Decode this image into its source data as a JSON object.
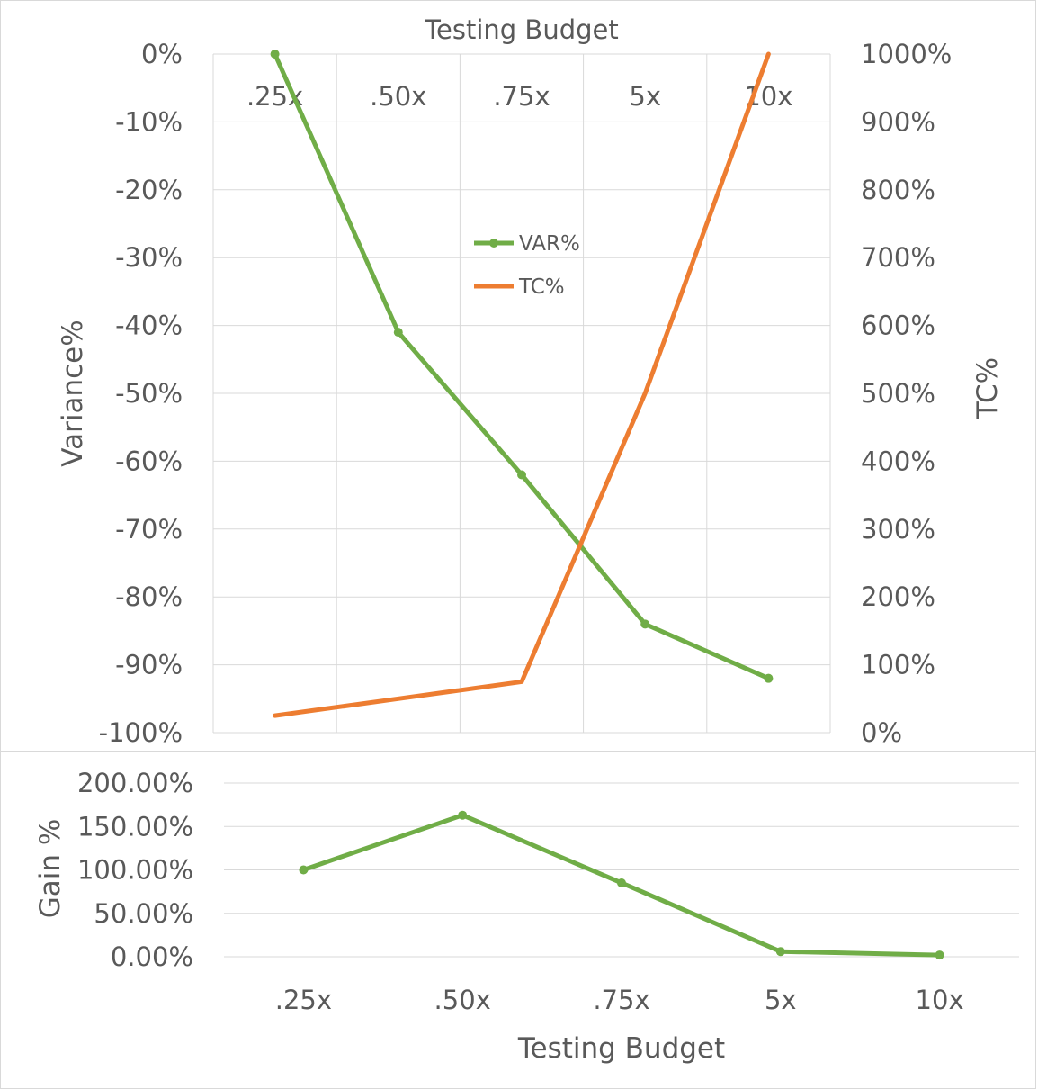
{
  "colors": {
    "var": "#70ad47",
    "tc": "#ed7d31",
    "grid": "#d9d9d9",
    "text": "#595959"
  },
  "chart_data": [
    {
      "type": "line",
      "title": "Testing Budget",
      "categories": [
        ".25x",
        ".50x",
        ".75x",
        "5x",
        "10x"
      ],
      "ylabel": "Variance%",
      "y2label": "TC%",
      "ylim": [
        -100,
        0
      ],
      "y2lim": [
        0,
        1000
      ],
      "yticks": [
        "0%",
        "-10%",
        "-20%",
        "-30%",
        "-40%",
        "-50%",
        "-60%",
        "-70%",
        "-80%",
        "-90%",
        "-100%"
      ],
      "y2ticks": [
        "1000%",
        "900%",
        "800%",
        "700%",
        "600%",
        "500%",
        "400%",
        "300%",
        "200%",
        "100%",
        "0%"
      ],
      "legend_position": "center",
      "grid": true,
      "series": [
        {
          "name": "VAR%",
          "axis": "left",
          "markers": true,
          "values": [
            0,
            -41,
            -62,
            -84,
            -92
          ]
        },
        {
          "name": "TC%",
          "axis": "right",
          "markers": false,
          "values": [
            25,
            50,
            75,
            500,
            1000
          ]
        }
      ]
    },
    {
      "type": "line",
      "xlabel": "Testing Budget",
      "ylabel": "Gain %",
      "categories": [
        ".25x",
        ".50x",
        ".75x",
        "5x",
        "10x"
      ],
      "ylim": [
        0,
        200
      ],
      "yticks": [
        "200.00%",
        "150.00%",
        "100.00%",
        "50.00%",
        "0.00%"
      ],
      "grid": true,
      "series": [
        {
          "markers": true,
          "values": [
            100,
            163,
            85,
            6,
            2
          ]
        }
      ]
    }
  ]
}
